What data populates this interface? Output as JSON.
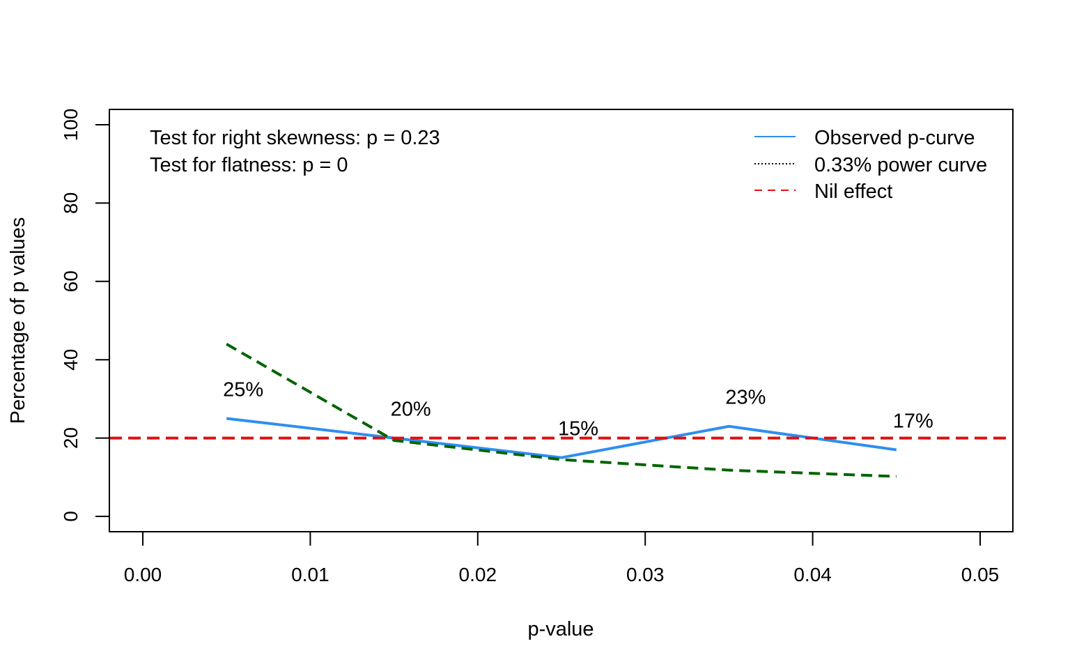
{
  "chart_data": {
    "type": "line",
    "title": "",
    "xlabel": "p-value",
    "ylabel": "Percentage of p values",
    "xlim": [
      0.0,
      0.052
    ],
    "ylim": [
      0,
      100
    ],
    "x_ticks": [
      0.0,
      0.01,
      0.02,
      0.03,
      0.04,
      0.05
    ],
    "x_tick_labels": [
      "0.00",
      "0.01",
      "0.02",
      "0.03",
      "0.04",
      "0.05"
    ],
    "y_ticks": [
      0,
      20,
      40,
      60,
      80,
      100
    ],
    "y_tick_labels": [
      "0",
      "20",
      "40",
      "60",
      "80",
      "100"
    ],
    "x": [
      0.005,
      0.015,
      0.025,
      0.035,
      0.045
    ],
    "series": [
      {
        "name": "Observed p-curve",
        "values": [
          25,
          20,
          15,
          23,
          17
        ],
        "color": "#2e8ef0",
        "style": "solid"
      },
      {
        "name": "0.33% power curve",
        "values": [
          44,
          19.4,
          14.5,
          11.8,
          10.2
        ],
        "color": "#006400",
        "style": "dashed"
      },
      {
        "name": "Nil effect",
        "values": [
          20,
          20,
          20,
          20,
          20
        ],
        "color": "#e01010",
        "style": "dashed",
        "full_width": true
      }
    ],
    "data_labels": [
      "25%",
      "20%",
      "15%",
      "23%",
      "17%"
    ],
    "annotations": [
      "Test for right skewness: p = 0.23",
      "Test for flatness: p = 0"
    ],
    "legend": {
      "placement": "top-right",
      "entries": [
        {
          "label": "Observed p-curve",
          "color": "#2e8ef0",
          "style": "solid"
        },
        {
          "label": "0.33% power curve",
          "color": "#000000",
          "style": "dotted"
        },
        {
          "label": "Nil effect",
          "color": "#e01010",
          "style": "dashed"
        }
      ]
    },
    "grid": false
  }
}
